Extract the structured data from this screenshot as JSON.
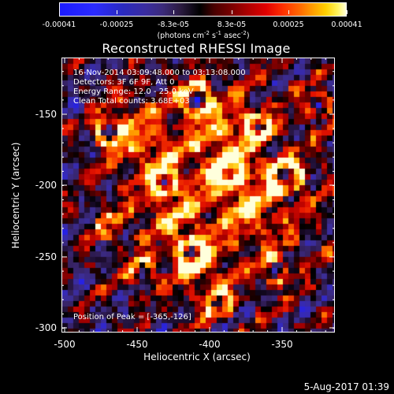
{
  "colorbar": {
    "tick_labels": [
      "-0.00041",
      "-0.00025",
      "-8.3e-05",
      "8.3e-05",
      "0.00025",
      "0.00041"
    ],
    "units": {
      "prefix": "(photons cm",
      "exp1": "-2",
      "mid1": " s",
      "exp2": "-1",
      "mid2": " asec",
      "exp3": "-2",
      "suffix": ")"
    }
  },
  "title": "Reconstructed RHESSI Image",
  "info": {
    "line1": "16-Nov-2014 03:09:48.000 to 03:13:08.000",
    "line2": "Detectors: 3F 6F 9F, Att 0",
    "line3": "Energy Range: 12.0 - 25.0 keV",
    "line4": "Clean     Total counts: 3.68E+03",
    "peak": "Position of Peak = [-365,-126]"
  },
  "axes": {
    "xlabel": "Heliocentric X (arcsec)",
    "ylabel": "Heliocentric Y (arcsec)",
    "xticks": [
      "-500",
      "-450",
      "-400",
      "-350"
    ],
    "yticks": [
      "-150",
      "-200",
      "-250",
      "-300"
    ]
  },
  "footer": "5-Aug-2017 01:39",
  "colors": {
    "background": "#000000",
    "foreground": "#ffffff"
  },
  "chart_data": {
    "type": "heatmap",
    "title": "Reconstructed RHESSI Image",
    "xlabel": "Heliocentric X (arcsec)",
    "ylabel": "Heliocentric Y (arcsec)",
    "xlim": [
      -505,
      -320
    ],
    "ylim": [
      -305,
      -121
    ],
    "colorbar_range": [
      -0.00041,
      0.00041
    ],
    "colormap": "blue-black-red-yellow-white",
    "peak": [
      -365,
      -126
    ]
  }
}
